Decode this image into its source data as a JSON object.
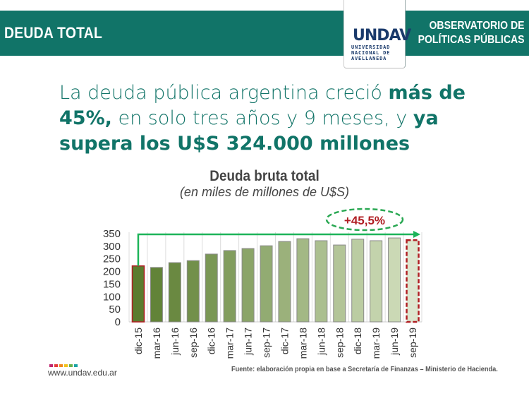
{
  "header": {
    "title": "DEUDA TOTAL",
    "observatory_line1": "OBSERVATORIO DE",
    "observatory_line2": "POLÍTICAS PÚBLICAS",
    "logo": {
      "mark": "UNDAV",
      "line1": "UNIVERSIDAD",
      "line2": "NACIONAL DE",
      "line3": "AVELLANEDA"
    },
    "banner_color": "#117468"
  },
  "headline": {
    "part1": "La deuda pública argentina creció ",
    "bold1": "más de 45%,",
    "part2": " en solo tres años y 9 meses, y ",
    "bold2": "ya supera los U$S 324.000 millones"
  },
  "chart_data": {
    "type": "bar",
    "title": "Deuda bruta total",
    "subtitle": "(en miles de millones de U$S)",
    "xlabel": "",
    "ylabel": "",
    "ylim": [
      0,
      350
    ],
    "yticks": [
      0,
      50,
      100,
      150,
      200,
      250,
      300,
      350
    ],
    "grid": "vertical separators",
    "categories": [
      "dic-15",
      "mar-16",
      "jun-16",
      "sep-16",
      "dic-16",
      "mar-17",
      "jun-17",
      "sep-17",
      "dic-17",
      "mar-18",
      "jun-18",
      "sep-18",
      "dic-18",
      "mar-19",
      "jun-19",
      "sep-19"
    ],
    "values": [
      222,
      216,
      235,
      243,
      269,
      283,
      291,
      302,
      319,
      330,
      322,
      305,
      328,
      322,
      333,
      324
    ],
    "highlight": {
      "first": "dic-15",
      "last": "sep-19"
    },
    "annotation": "+45,5%",
    "colors": {
      "dark": "#5a7c2e",
      "light": "#d3e0bf",
      "highlight_border": "#b01e23",
      "arrow": "#1db45a"
    }
  },
  "footer": {
    "url": "www.undav.edu.ar",
    "source": "Fuente: elaboración propia en base a Secretaría de Finanzas – Ministerio de Hacienda.",
    "dot_colors": [
      "#c0266e",
      "#e63b3b",
      "#f08a1d",
      "#f2c21a",
      "#6ab04c",
      "#1aa3a6"
    ]
  }
}
